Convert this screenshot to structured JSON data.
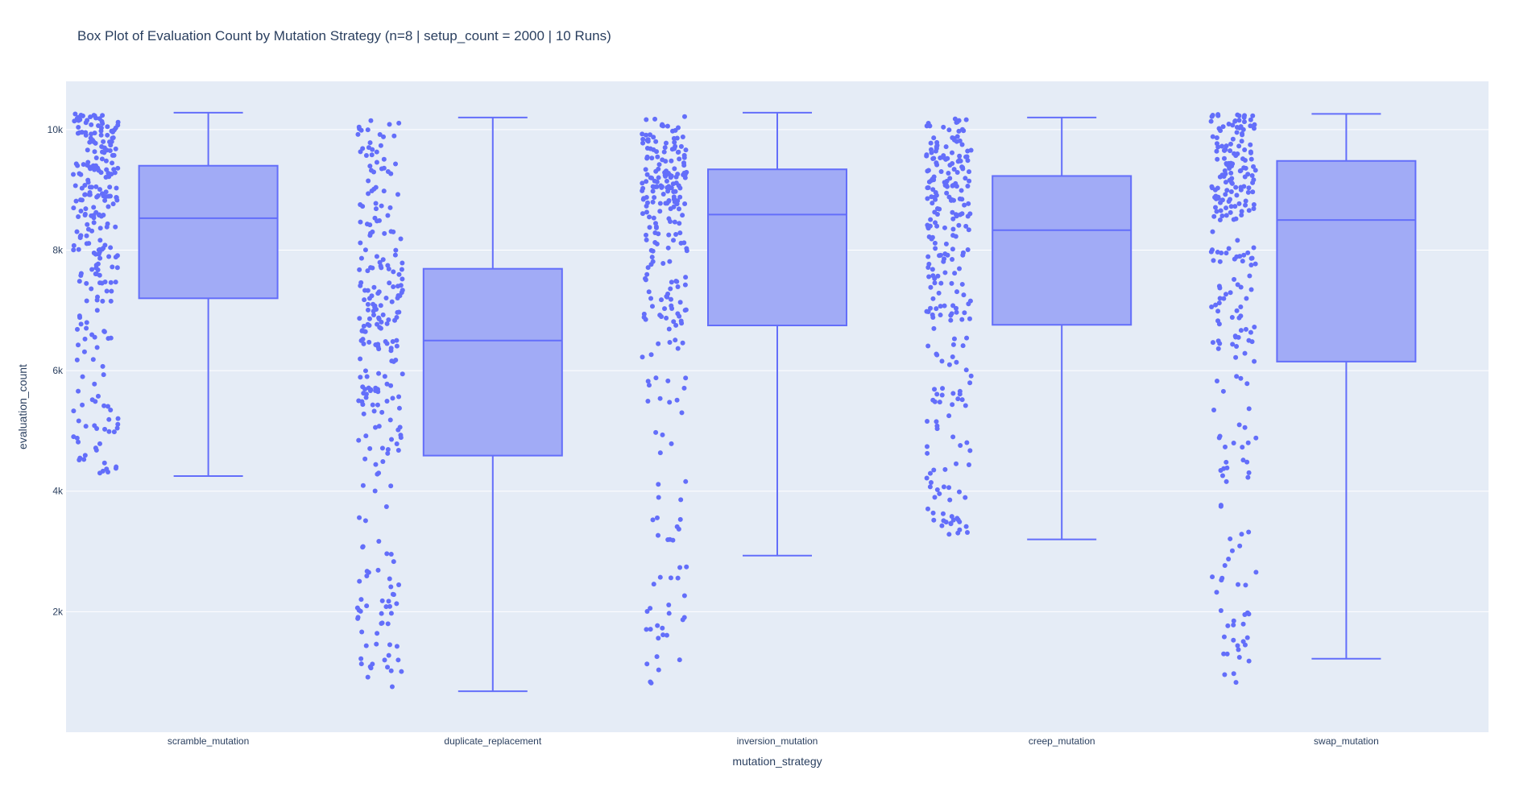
{
  "chart_data": {
    "type": "box",
    "title": "Box Plot of Evaluation Count by Mutation Strategy (n=8 | setup_count = 2000 | 10 Runs)",
    "xlabel": "mutation_strategy",
    "ylabel": "evaluation_count",
    "categories": [
      "scramble_mutation",
      "duplicate_replacement",
      "inversion_mutation",
      "creep_mutation",
      "swap_mutation"
    ],
    "ylim": [
      0,
      10800
    ],
    "yticks": [
      2000,
      4000,
      6000,
      8000,
      10000
    ],
    "ytick_labels": [
      "2k",
      "4k",
      "6k",
      "8k",
      "10k"
    ],
    "grid": true,
    "points_shown": "all (jittered to the left of each box)",
    "boxes": [
      {
        "name": "scramble_mutation",
        "min": 4250,
        "q1": 7200,
        "median": 8530,
        "q3": 9400,
        "max": 10280
      },
      {
        "name": "duplicate_replacement",
        "min": 680,
        "q1": 4590,
        "median": 6500,
        "q3": 7690,
        "max": 10200
      },
      {
        "name": "inversion_mutation",
        "min": 2930,
        "q1": 6750,
        "median": 8590,
        "q3": 9340,
        "max": 10280
      },
      {
        "name": "creep_mutation",
        "min": 3200,
        "q1": 6760,
        "median": 8330,
        "q3": 9230,
        "max": 10200
      },
      {
        "name": "swap_mutation",
        "min": 1220,
        "q1": 6150,
        "median": 8500,
        "q3": 9480,
        "max": 10260
      }
    ],
    "colors": {
      "plot_bg": "#e5ecf6",
      "grid": "#ffffff",
      "box_fill": "#a1abf6",
      "box_line": "#636efa",
      "points": "#636efa",
      "text": "#2a3f5f"
    }
  }
}
